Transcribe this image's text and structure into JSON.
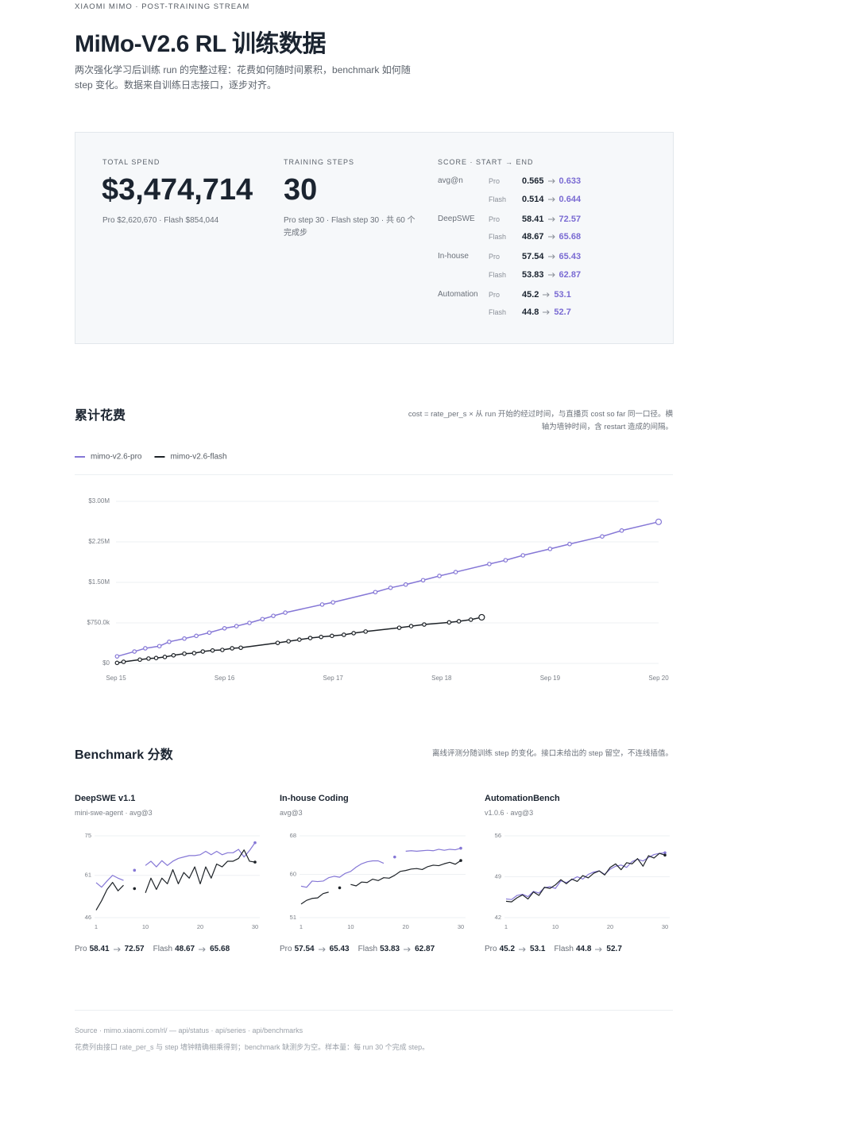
{
  "header": {
    "eyebrow": "XIAOMI MIMO · POST-TRAINING STREAM",
    "title": "MiMo-V2.6 RL 训练数据",
    "description": "两次强化学习后训练 run 的完整过程：花费如何随时间累积，benchmark 如何随 step 变化。数据来自训练日志接口，逐步对齐。"
  },
  "summary": {
    "total_spend": {
      "label": "TOTAL SPEND",
      "value": "$3,474,714",
      "detail": "Pro $2,620,670 · Flash $854,044"
    },
    "training_steps": {
      "label": "TRAINING STEPS",
      "value": 30,
      "detail": "Pro step 30 · Flash step 30 · 共 60 个完成步"
    },
    "scores": {
      "label": "SCORE · START → END",
      "groups": [
        {
          "name": "avg@n",
          "rows": [
            {
              "variant": "Pro",
              "start": 0.565,
              "end": 0.633
            },
            {
              "variant": "Flash",
              "start": 0.514,
              "end": 0.644
            }
          ]
        },
        {
          "name": "DeepSWE",
          "rows": [
            {
              "variant": "Pro",
              "start": 58.41,
              "end": 72.57
            },
            {
              "variant": "Flash",
              "start": 48.67,
              "end": 65.68
            }
          ]
        },
        {
          "name": "In-house",
          "rows": [
            {
              "variant": "Pro",
              "start": 57.54,
              "end": 65.43
            },
            {
              "variant": "Flash",
              "start": 53.83,
              "end": 62.87
            }
          ]
        },
        {
          "name": "Automation",
          "rows": [
            {
              "variant": "Pro",
              "start": 45.2,
              "end": 53.1
            },
            {
              "variant": "Flash",
              "start": 44.8,
              "end": 52.7
            }
          ]
        }
      ]
    }
  },
  "benchmark_section": {
    "title": "Benchmark 分数",
    "note": "离线评测分随训练 step 的变化。接口未给出的 step 留空，不连线插值。"
  },
  "footer": {
    "source": "Source · mimo.xiaomi.com/rl/ — api/status · api/series · api/benchmarks",
    "note": "花费列由接口 rate_per_s 与 step 墙钟精确相乘得到；benchmark 缺测步为空。样本量：每 run 30 个完成 step。"
  },
  "chart_data": [
    {
      "type": "line",
      "title": "累计花费",
      "subtitle": "cost = rate_per_s × 从 run 开始的经过时间，与直播页 cost so far 同一口径。横轴为墙钟时间，含 restart 造成的间隔。",
      "legend": "top-left",
      "markers": true,
      "grid": true,
      "xlim": [
        15,
        20
      ],
      "xticks": [
        {
          "value": 15,
          "label": "Sep 15"
        },
        {
          "value": 16,
          "label": "Sep 16"
        },
        {
          "value": 17,
          "label": "Sep 17"
        },
        {
          "value": 18,
          "label": "Sep 18"
        },
        {
          "value": 19,
          "label": "Sep 19"
        },
        {
          "value": 20,
          "label": "Sep 20"
        }
      ],
      "ylim": [
        0,
        3000000
      ],
      "yticks": [
        {
          "value": 0,
          "label": "$0"
        },
        {
          "value": 750000,
          "label": "$750.0k"
        },
        {
          "value": 1500000,
          "label": "$1.50M"
        },
        {
          "value": 2250000,
          "label": "$2.25M"
        },
        {
          "value": 3000000,
          "label": "$3.00M"
        }
      ],
      "series": [
        {
          "name": "mimo-v2.6-pro",
          "color": "#8577d6",
          "x": [
            15.01,
            15.17,
            15.27,
            15.4,
            15.49,
            15.63,
            15.74,
            15.86,
            16.0,
            16.11,
            16.23,
            16.35,
            16.45,
            16.56,
            16.9,
            17.0,
            17.39,
            17.53,
            17.67,
            17.83,
            17.98,
            18.13,
            18.44,
            18.59,
            18.75,
            19.0,
            19.18,
            19.48,
            19.66,
            20.0
          ],
          "values": [
            130000,
            220000,
            280000,
            320000,
            400000,
            460000,
            510000,
            570000,
            650000,
            690000,
            750000,
            820000,
            880000,
            940000,
            1090000,
            1130000,
            1320000,
            1400000,
            1460000,
            1540000,
            1620000,
            1690000,
            1840000,
            1910000,
            2000000,
            2120000,
            2210000,
            2350000,
            2460000,
            2620670
          ]
        },
        {
          "name": "mimo-v2.6-flash",
          "color": "#1e2328",
          "x": [
            15.01,
            15.07,
            15.22,
            15.3,
            15.37,
            15.45,
            15.53,
            15.63,
            15.72,
            15.8,
            15.89,
            15.98,
            16.07,
            16.15,
            16.49,
            16.59,
            16.69,
            16.79,
            16.89,
            16.99,
            17.1,
            17.19,
            17.3,
            17.61,
            17.72,
            17.84,
            18.07,
            18.16,
            18.27,
            18.37
          ],
          "values": [
            10000,
            30000,
            70000,
            90000,
            100000,
            120000,
            150000,
            180000,
            190000,
            220000,
            240000,
            250000,
            280000,
            290000,
            380000,
            410000,
            440000,
            470000,
            490000,
            510000,
            530000,
            560000,
            590000,
            660000,
            690000,
            720000,
            760000,
            780000,
            810000,
            854044
          ]
        }
      ]
    },
    {
      "type": "line",
      "title": "DeepSWE v1.1",
      "subtitle": "mini-swe-agent · avg@3",
      "grid": true,
      "x": [
        1,
        2,
        3,
        4,
        5,
        6,
        7,
        8,
        9,
        10,
        11,
        12,
        13,
        14,
        15,
        16,
        17,
        18,
        19,
        20,
        21,
        22,
        23,
        24,
        25,
        26,
        27,
        28,
        29,
        30
      ],
      "xlim": [
        1,
        30
      ],
      "xticks": [
        1,
        10,
        20,
        30
      ],
      "ylim": [
        46,
        75
      ],
      "yticks": [
        46,
        61,
        75
      ],
      "series": [
        {
          "name": "Pro",
          "color": "#8577d6",
          "values": [
            58.41,
            56.8,
            59.0,
            61.0,
            60.0,
            59.2,
            null,
            62.8,
            null,
            64.5,
            66.0,
            64.0,
            66.2,
            64.5,
            66.0,
            67.0,
            67.5,
            68.0,
            68.0,
            68.3,
            69.5,
            68.3,
            69.5,
            68.3,
            69.0,
            69.0,
            70.2,
            67.5,
            69.8,
            72.57
          ]
        },
        {
          "name": "Flash",
          "color": "#1e2328",
          "values": [
            48.67,
            52.0,
            56.0,
            58.5,
            55.5,
            57.5,
            null,
            56.3,
            null,
            54.8,
            60.0,
            56.0,
            60.0,
            58.0,
            63.0,
            58.0,
            62.0,
            60.0,
            64.0,
            58.0,
            64.0,
            60.0,
            65.0,
            64.0,
            66.0,
            66.0,
            67.0,
            70.0,
            66.0,
            65.68
          ]
        }
      ]
    },
    {
      "type": "line",
      "title": "In-house Coding",
      "subtitle": "avg@3",
      "grid": true,
      "x": [
        1,
        2,
        3,
        4,
        5,
        6,
        7,
        8,
        9,
        10,
        11,
        12,
        13,
        14,
        15,
        16,
        17,
        18,
        19,
        20,
        21,
        22,
        23,
        24,
        25,
        26,
        27,
        28,
        29,
        30
      ],
      "xlim": [
        1,
        30
      ],
      "xticks": [
        1,
        10,
        20,
        30
      ],
      "ylim": [
        51,
        68
      ],
      "yticks": [
        51,
        60,
        68
      ],
      "series": [
        {
          "name": "Pro",
          "color": "#8577d6",
          "values": [
            57.54,
            57.3,
            58.6,
            58.5,
            58.6,
            59.3,
            59.6,
            59.4,
            60.2,
            60.6,
            61.5,
            62.2,
            62.6,
            62.8,
            62.8,
            62.3,
            null,
            63.6,
            null,
            64.8,
            64.9,
            64.8,
            64.9,
            65.0,
            64.9,
            65.2,
            65.0,
            65.2,
            65.1,
            65.43
          ]
        },
        {
          "name": "Flash",
          "color": "#1e2328",
          "values": [
            53.83,
            54.6,
            55.0,
            55.1,
            56.0,
            56.3,
            null,
            57.2,
            null,
            57.9,
            57.6,
            58.4,
            58.3,
            59.0,
            58.7,
            59.3,
            59.2,
            59.8,
            60.6,
            60.8,
            61.1,
            61.2,
            61.0,
            61.6,
            61.9,
            61.8,
            62.2,
            62.5,
            62.1,
            62.87
          ]
        }
      ]
    },
    {
      "type": "line",
      "title": "AutomationBench",
      "subtitle": "v1.0.6 · avg@3",
      "grid": true,
      "x": [
        1,
        2,
        3,
        4,
        5,
        6,
        7,
        8,
        9,
        10,
        11,
        12,
        13,
        14,
        15,
        16,
        17,
        18,
        19,
        20,
        21,
        22,
        23,
        24,
        25,
        26,
        27,
        28,
        29,
        30
      ],
      "xlim": [
        1,
        30
      ],
      "xticks": [
        1,
        10,
        20,
        30
      ],
      "ylim": [
        42,
        56
      ],
      "yticks": [
        42,
        49,
        56
      ],
      "series": [
        {
          "name": "Pro",
          "color": "#8577d6",
          "values": [
            45.2,
            45.1,
            45.8,
            46.0,
            45.6,
            46.5,
            46.2,
            47.1,
            47.3,
            47.0,
            48.3,
            48.0,
            48.5,
            49.0,
            48.6,
            49.4,
            49.8,
            50.0,
            49.4,
            50.3,
            50.8,
            51.0,
            50.6,
            51.6,
            52.0,
            51.7,
            52.3,
            52.8,
            53.0,
            53.1
          ]
        },
        {
          "name": "Flash",
          "color": "#1e2328",
          "values": [
            44.8,
            44.7,
            45.4,
            45.9,
            45.2,
            46.4,
            45.8,
            47.2,
            47.0,
            47.6,
            48.5,
            47.8,
            48.6,
            48.2,
            49.2,
            48.8,
            49.6,
            50.0,
            49.3,
            50.6,
            51.2,
            50.2,
            51.4,
            51.2,
            52.1,
            50.8,
            52.6,
            52.2,
            53.0,
            52.7
          ]
        }
      ]
    }
  ]
}
